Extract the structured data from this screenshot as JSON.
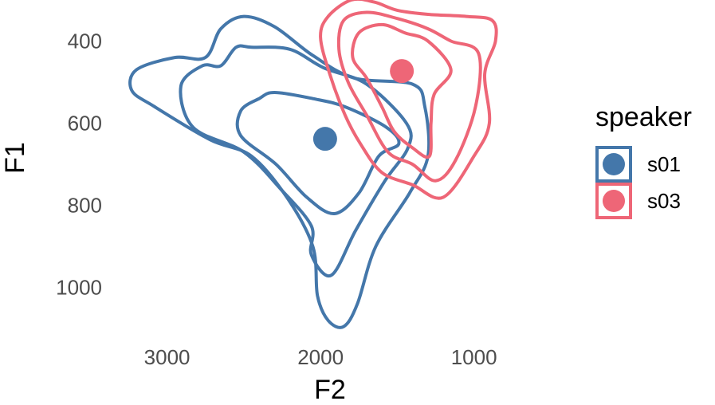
{
  "chart_data": {
    "type": "contour-scatter",
    "xlabel": "F2",
    "ylabel": "F1",
    "x_reversed": true,
    "y_reversed": true,
    "xlim": [
      3320,
      650
    ],
    "ylim": [
      1115,
      300
    ],
    "x_ticks": [
      3000,
      2000,
      1000
    ],
    "x_tick_labels": [
      "3000",
      "2000",
      "1000"
    ],
    "y_ticks": [
      400,
      600,
      800,
      1000
    ],
    "y_tick_labels": [
      "400",
      "600",
      "800",
      "1000"
    ],
    "grid": false,
    "legend": {
      "title": "speaker",
      "placement": "right",
      "entries": [
        {
          "label": "s01",
          "color": "#4477aa"
        },
        {
          "label": "s03",
          "color": "#ee6677"
        }
      ]
    },
    "series": [
      {
        "name": "s01",
        "color": "#4477aa",
        "mean": [
          1970,
          638
        ],
        "contours": [
          [
            [
              2750,
              440
            ],
            [
              2650,
              370
            ],
            [
              2500,
              340
            ],
            [
              2300,
              365
            ],
            [
              2050,
              435
            ],
            [
              1780,
              490
            ],
            [
              1400,
              505
            ],
            [
              1320,
              560
            ],
            [
              1300,
              680
            ],
            [
              1420,
              770
            ],
            [
              1640,
              900
            ],
            [
              1760,
              1040
            ],
            [
              1850,
              1095
            ],
            [
              1950,
              1080
            ],
            [
              2020,
              1020
            ],
            [
              2050,
              900
            ],
            [
              2220,
              780
            ],
            [
              2450,
              680
            ],
            [
              2720,
              640
            ],
            [
              3080,
              560
            ],
            [
              3230,
              520
            ],
            [
              3200,
              470
            ],
            [
              2950,
              440
            ]
          ],
          [
            [
              2650,
              460
            ],
            [
              2550,
              415
            ],
            [
              2450,
              415
            ],
            [
              2200,
              420
            ],
            [
              1980,
              465
            ],
            [
              1700,
              505
            ],
            [
              1440,
              600
            ],
            [
              1430,
              660
            ],
            [
              1580,
              740
            ],
            [
              1770,
              860
            ],
            [
              1930,
              970
            ],
            [
              2060,
              920
            ],
            [
              2060,
              850
            ],
            [
              2260,
              760
            ],
            [
              2500,
              670
            ],
            [
              2830,
              610
            ],
            [
              2910,
              510
            ],
            [
              2770,
              460
            ]
          ],
          [
            [
              2400,
              540
            ],
            [
              2300,
              525
            ],
            [
              2050,
              540
            ],
            [
              1840,
              560
            ],
            [
              1570,
              610
            ],
            [
              1490,
              650
            ],
            [
              1620,
              680
            ],
            [
              1750,
              770
            ],
            [
              1910,
              820
            ],
            [
              2090,
              780
            ],
            [
              2290,
              700
            ],
            [
              2520,
              630
            ],
            [
              2520,
              570
            ]
          ]
        ]
      },
      {
        "name": "s03",
        "color": "#ee6677",
        "mean": [
          1470,
          473
        ],
        "contours": [
          [
            [
              1950,
              340
            ],
            [
              1800,
              300
            ],
            [
              1650,
              305
            ],
            [
              1500,
              325
            ],
            [
              1300,
              335
            ],
            [
              1050,
              340
            ],
            [
              880,
              350
            ],
            [
              860,
              400
            ],
            [
              930,
              480
            ],
            [
              900,
              600
            ],
            [
              1000,
              680
            ],
            [
              1200,
              780
            ],
            [
              1400,
              750
            ],
            [
              1600,
              720
            ],
            [
              1740,
              650
            ],
            [
              1840,
              580
            ],
            [
              1940,
              480
            ],
            [
              2000,
              390
            ]
          ],
          [
            [
              1850,
              350
            ],
            [
              1700,
              330
            ],
            [
              1500,
              345
            ],
            [
              1300,
              370
            ],
            [
              1150,
              400
            ],
            [
              970,
              430
            ],
            [
              990,
              560
            ],
            [
              1120,
              690
            ],
            [
              1250,
              740
            ],
            [
              1400,
              700
            ],
            [
              1560,
              670
            ],
            [
              1700,
              580
            ],
            [
              1820,
              500
            ],
            [
              1880,
              420
            ]
          ],
          [
            [
              1750,
              380
            ],
            [
              1600,
              360
            ],
            [
              1450,
              380
            ],
            [
              1300,
              400
            ],
            [
              1150,
              470
            ],
            [
              1260,
              530
            ],
            [
              1280,
              600
            ],
            [
              1290,
              680
            ],
            [
              1400,
              660
            ],
            [
              1520,
              620
            ],
            [
              1600,
              560
            ],
            [
              1700,
              490
            ],
            [
              1790,
              440
            ]
          ]
        ]
      }
    ]
  }
}
